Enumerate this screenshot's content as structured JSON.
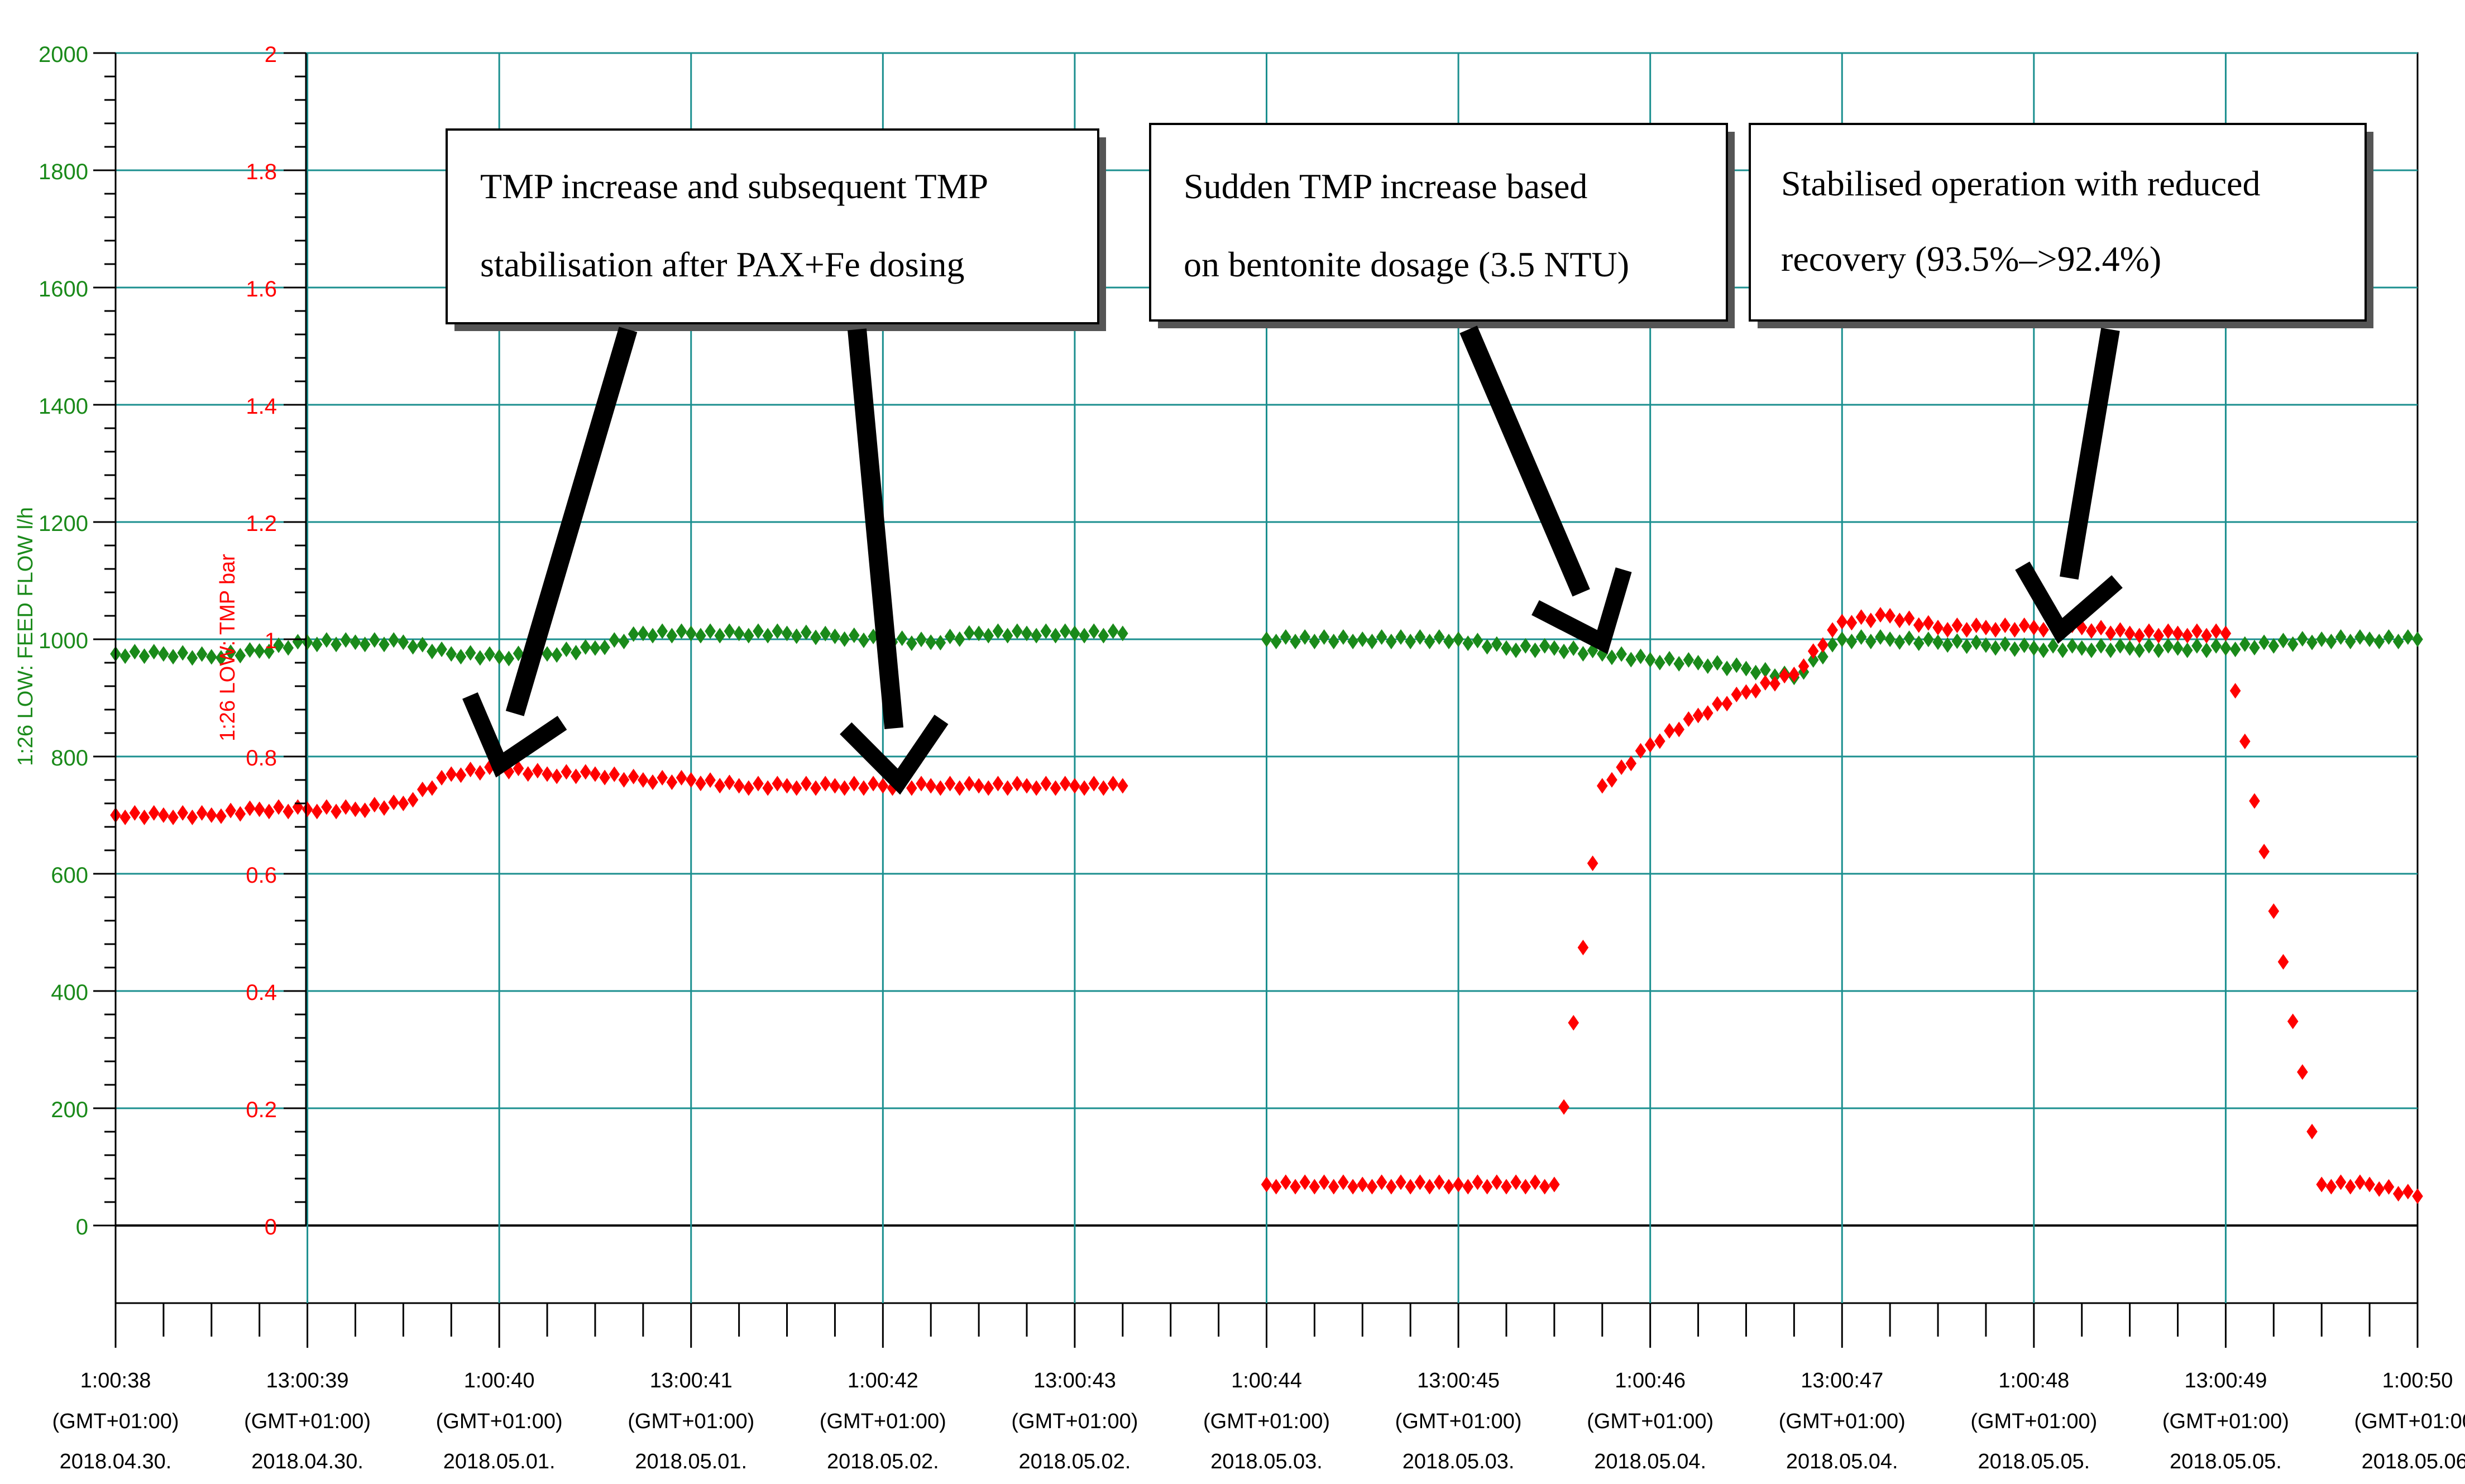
{
  "chart_data": {
    "type": "scatter",
    "title": "",
    "xlabel": "",
    "left_axis": {
      "label": "1:26 LOW: FEED FLOW l/h",
      "color": "#1a8a1a",
      "ylim": [
        0,
        2000
      ],
      "ticks": [
        "2000",
        "1800",
        "1600",
        "1400",
        "1200",
        "1000",
        "800",
        "600",
        "400",
        "200",
        "0"
      ]
    },
    "right_axis": {
      "label": "1:26 LOW: TMP bar",
      "color": "#ff0000",
      "ylim": [
        0,
        2
      ],
      "ticks": [
        "2",
        "1.8",
        "1.6",
        "1.4",
        "1.2",
        "1",
        "0.8",
        "0.6",
        "0.4",
        "0.2",
        "0"
      ]
    },
    "x_ticks": [
      {
        "time": "1:00:38",
        "tz": "(GMT+01:00)",
        "date": "2018.04.30."
      },
      {
        "time": "13:00:39",
        "tz": "(GMT+01:00)",
        "date": "2018.04.30."
      },
      {
        "time": "1:00:40",
        "tz": "(GMT+01:00)",
        "date": "2018.05.01."
      },
      {
        "time": "13:00:41",
        "tz": "(GMT+01:00)",
        "date": "2018.05.01."
      },
      {
        "time": "1:00:42",
        "tz": "(GMT+01:00)",
        "date": "2018.05.02."
      },
      {
        "time": "13:00:43",
        "tz": "(GMT+01:00)",
        "date": "2018.05.02."
      },
      {
        "time": "1:00:44",
        "tz": "(GMT+01:00)",
        "date": "2018.05.03."
      },
      {
        "time": "13:00:45",
        "tz": "(GMT+01:00)",
        "date": "2018.05.03."
      },
      {
        "time": "1:00:46",
        "tz": "(GMT+01:00)",
        "date": "2018.05.04."
      },
      {
        "time": "13:00:47",
        "tz": "(GMT+01:00)",
        "date": "2018.05.04."
      },
      {
        "time": "1:00:48",
        "tz": "(GMT+01:00)",
        "date": "2018.05.05."
      },
      {
        "time": "13:00:49",
        "tz": "(GMT+01:00)",
        "date": "2018.05.05."
      },
      {
        "time": "1:00:50",
        "tz": "(GMT+01:00)",
        "date": "2018.05.06."
      }
    ],
    "grid": true,
    "series": [
      {
        "name": "1:26 LOW: FEED FLOW l/h",
        "color": "#1a8a1a",
        "axis": "left",
        "x": [
          0.0,
          0.25,
          0.5,
          0.75,
          1.0,
          1.25,
          1.5,
          1.75,
          2.0,
          2.25,
          2.5,
          2.75,
          3.0,
          3.25,
          3.5,
          3.75,
          4.0,
          4.25,
          4.5,
          4.75,
          5.0,
          5.25,
          6.0,
          6.5,
          7.0,
          7.25,
          7.5,
          7.75,
          8.0,
          8.25,
          8.5,
          8.75,
          9.0,
          9.25,
          9.5,
          9.75,
          10.0,
          10.25,
          10.5,
          10.75,
          11.0,
          11.5,
          11.75,
          12.0
        ],
        "y": [
          975,
          975,
          970,
          980,
          995,
          995,
          995,
          975,
          970,
          975,
          985,
          1010,
          1010,
          1010,
          1010,
          1005,
          1000,
          995,
          1010,
          1010,
          1010,
          1010,
          1000,
          1000,
          1000,
          985,
          985,
          975,
          965,
          960,
          950,
          935,
          1000,
          1000,
          995,
          990,
          985,
          985,
          985,
          985,
          985,
          1000,
          1000,
          1000
        ]
      },
      {
        "name": "1:26 LOW: TMP bar",
        "color": "#ff0000",
        "axis": "right",
        "x": [
          0.0,
          0.25,
          0.5,
          0.75,
          1.0,
          1.25,
          1.5,
          1.75,
          2.0,
          2.25,
          2.5,
          2.75,
          3.0,
          3.25,
          3.5,
          3.75,
          4.0,
          4.25,
          4.5,
          4.75,
          5.0,
          5.25,
          6.0,
          6.5,
          7.0,
          7.5,
          7.75,
          8.0,
          8.25,
          8.5,
          8.75,
          9.0,
          9.25,
          9.5,
          9.75,
          10.0,
          10.25,
          10.5,
          10.75,
          11.0,
          11.5,
          11.75,
          12.0
        ],
        "y": [
          0.7,
          0.7,
          0.7,
          0.71,
          0.71,
          0.71,
          0.72,
          0.77,
          0.78,
          0.77,
          0.77,
          0.76,
          0.76,
          0.75,
          0.75,
          0.75,
          0.75,
          0.75,
          0.75,
          0.75,
          0.75,
          0.75,
          0.07,
          0.07,
          0.07,
          0.07,
          0.75,
          0.82,
          0.87,
          0.91,
          0.94,
          1.03,
          1.04,
          1.02,
          1.02,
          1.02,
          1.02,
          1.01,
          1.01,
          1.01,
          0.07,
          0.07,
          0.05
        ]
      }
    ],
    "annotations": [
      {
        "lines": [
          "TMP increase and subsequent TMP",
          "stabilisation after PAX+Fe dosing"
        ]
      },
      {
        "lines": [
          "Sudden  TMP  increase  based",
          "on bentonite dosage (3.5 NTU)"
        ]
      },
      {
        "lines": [
          "Stabilised operation with reduced",
          "recovery (93.5%–>92.4%)"
        ]
      }
    ]
  }
}
